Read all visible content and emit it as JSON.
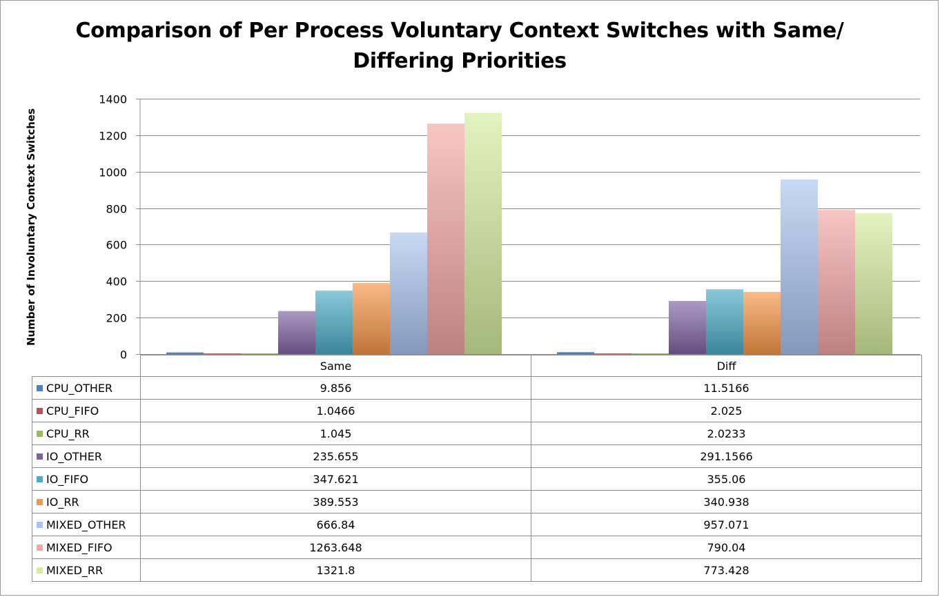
{
  "chart_data": {
    "type": "bar",
    "title": "Comparison of Per Process Voluntary Context Switches with Same/ Differing Priorities",
    "title_lines": [
      "Comparison of Per Process Voluntary Context Switches with Same/",
      "Differing Priorities"
    ],
    "ylabel": "Number of Involuntary Context Switches",
    "xlabel": "",
    "categories": [
      "Same",
      "Diff"
    ],
    "ylim": [
      0,
      1400
    ],
    "yticks": [
      0,
      200,
      400,
      600,
      800,
      1000,
      1200,
      1400
    ],
    "grid": true,
    "legend_placement": "data-table",
    "series": [
      {
        "name": "CPU_OTHER",
        "values": [
          9.856,
          11.5166
        ],
        "value_labels": [
          "9.856",
          "11.5166"
        ],
        "color": "#4f81bd"
      },
      {
        "name": "CPU_FIFO",
        "values": [
          1.0466,
          2.025
        ],
        "value_labels": [
          "1.0466",
          "2.025"
        ],
        "color": "#c0504d"
      },
      {
        "name": "CPU_RR",
        "values": [
          1.045,
          2.0233
        ],
        "value_labels": [
          "1.045",
          "2.0233"
        ],
        "color": "#9bbb59"
      },
      {
        "name": "IO_OTHER",
        "values": [
          235.655,
          291.1566
        ],
        "value_labels": [
          "235.655",
          "291.1566"
        ],
        "color": "#8064a2"
      },
      {
        "name": "IO_FIFO",
        "values": [
          347.621,
          355.06
        ],
        "value_labels": [
          "347.621",
          "355.06"
        ],
        "color": "#4bacc6"
      },
      {
        "name": "IO_RR",
        "values": [
          389.553,
          340.938
        ],
        "value_labels": [
          "389.553",
          "340.938"
        ],
        "color": "#f79646"
      },
      {
        "name": "MIXED_OTHER",
        "values": [
          666.84,
          957.071
        ],
        "value_labels": [
          "666.84",
          "957.071"
        ],
        "color": "#a9c4ee"
      },
      {
        "name": "MIXED_FIFO",
        "values": [
          1263.648,
          790.04
        ],
        "value_labels": [
          "1263.648",
          "790.04"
        ],
        "color": "#f4a6a6"
      },
      {
        "name": "MIXED_RR",
        "values": [
          1321.8,
          773.428
        ],
        "value_labels": [
          "1321.8",
          "773.428"
        ],
        "color": "#d4ec9e"
      }
    ]
  }
}
